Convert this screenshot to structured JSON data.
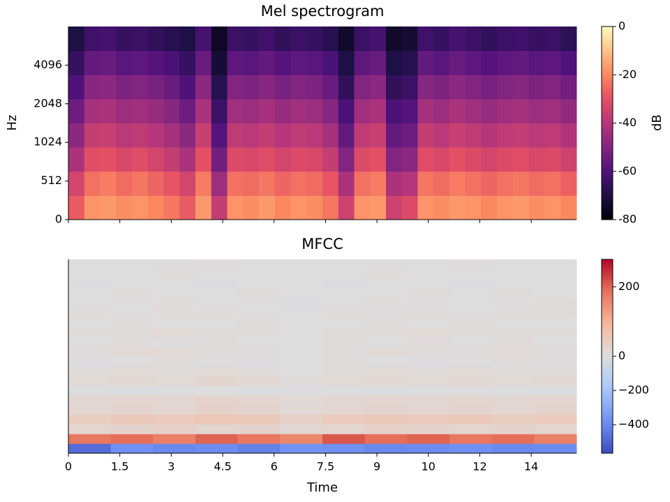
{
  "chart_data": [
    {
      "type": "heatmap",
      "title": "Mel spectrogram",
      "ylabel": "Hz",
      "ylim": [
        0,
        8192
      ],
      "yscale": "symlog",
      "linthresh": 512,
      "base": 2,
      "yticks": [
        0,
        512,
        1024,
        2048,
        4096
      ],
      "colormap": "magma",
      "clim": [
        -80,
        0
      ],
      "cticks": [
        0,
        -20,
        -40,
        -60,
        -80
      ],
      "clabel": "dB",
      "z": [
        [
          -28,
          -18,
          -17,
          -19,
          -18,
          -20,
          -23,
          -28,
          -17,
          -37,
          -18,
          -19,
          -17,
          -20,
          -18,
          -19,
          -23,
          -35,
          -18,
          -17,
          -35,
          -32,
          -18,
          -19,
          -17,
          -18,
          -20,
          -18,
          -17,
          -19,
          -18,
          -20
        ],
        [
          -34,
          -24,
          -22,
          -25,
          -23,
          -26,
          -29,
          -34,
          -22,
          -45,
          -24,
          -25,
          -23,
          -26,
          -24,
          -25,
          -29,
          -42,
          -24,
          -22,
          -42,
          -40,
          -23,
          -25,
          -22,
          -24,
          -26,
          -24,
          -23,
          -25,
          -24,
          -27
        ],
        [
          -42,
          -31,
          -30,
          -33,
          -31,
          -34,
          -37,
          -42,
          -30,
          -53,
          -32,
          -33,
          -31,
          -34,
          -32,
          -33,
          -37,
          -50,
          -32,
          -30,
          -50,
          -48,
          -31,
          -33,
          -30,
          -32,
          -34,
          -32,
          -31,
          -33,
          -32,
          -35
        ],
        [
          -48,
          -37,
          -36,
          -39,
          -38,
          -40,
          -43,
          -48,
          -36,
          -59,
          -38,
          -39,
          -37,
          -40,
          -38,
          -39,
          -43,
          -56,
          -38,
          -36,
          -56,
          -54,
          -37,
          -39,
          -36,
          -38,
          -40,
          -38,
          -37,
          -39,
          -38,
          -41
        ],
        [
          -54,
          -43,
          -42,
          -45,
          -44,
          -46,
          -49,
          -54,
          -42,
          -64,
          -44,
          -45,
          -43,
          -46,
          -44,
          -45,
          -49,
          -61,
          -44,
          -42,
          -61,
          -59,
          -43,
          -45,
          -42,
          -44,
          -46,
          -44,
          -43,
          -45,
          -44,
          -47
        ],
        [
          -60,
          -49,
          -48,
          -51,
          -50,
          -52,
          -55,
          -60,
          -48,
          -68,
          -50,
          -51,
          -49,
          -52,
          -50,
          -51,
          -55,
          -66,
          -50,
          -48,
          -66,
          -64,
          -49,
          -51,
          -48,
          -50,
          -52,
          -50,
          -49,
          -51,
          -50,
          -53
        ],
        [
          -65,
          -56,
          -55,
          -58,
          -57,
          -59,
          -61,
          -65,
          -55,
          -72,
          -57,
          -58,
          -56,
          -59,
          -57,
          -58,
          -61,
          -70,
          -57,
          -55,
          -70,
          -68,
          -56,
          -58,
          -55,
          -57,
          -59,
          -57,
          -56,
          -58,
          -57,
          -60
        ],
        [
          -70,
          -63,
          -62,
          -65,
          -64,
          -66,
          -68,
          -70,
          -62,
          -75,
          -64,
          -65,
          -63,
          -66,
          -64,
          -65,
          -68,
          -74,
          -64,
          -62,
          -74,
          -72,
          -63,
          -65,
          -62,
          -64,
          -66,
          -64,
          -63,
          -65,
          -64,
          -67
        ]
      ]
    },
    {
      "type": "heatmap",
      "title": "MFCC",
      "xlabel": "Time",
      "xlim": [
        0,
        14.82
      ],
      "xticks": [
        0,
        1.5,
        3,
        4.5,
        6,
        7.5,
        9,
        {
          "value": 10.5,
          "label": "10"
        },
        12,
        {
          "value": 13.5,
          "label": "14"
        }
      ],
      "colormap": "coolwarm",
      "cnorm": "twoslope",
      "ccenter": 0,
      "clim": [
        -566,
        279
      ],
      "cticks": [
        200,
        0,
        {
          "value": -200,
          "label": "−200"
        },
        {
          "value": -400,
          "label": "−400"
        }
      ],
      "z": [
        [
          -480,
          -380,
          -400,
          -390,
          -420,
          -370,
          -380,
          -400,
          -390,
          -380,
          -400,
          -390
        ],
        [
          180,
          190,
          170,
          200,
          180,
          160,
          210,
          190,
          200,
          180,
          190,
          170
        ],
        [
          20,
          25,
          30,
          20,
          25,
          15,
          20,
          30,
          25,
          20,
          25,
          20
        ],
        [
          40,
          50,
          45,
          55,
          50,
          30,
          45,
          50,
          45,
          50,
          40,
          45
        ],
        [
          20,
          25,
          20,
          30,
          25,
          15,
          20,
          25,
          20,
          25,
          20,
          25
        ],
        [
          15,
          20,
          15,
          25,
          20,
          10,
          15,
          20,
          15,
          20,
          15,
          20
        ],
        [
          -5,
          -10,
          -5,
          0,
          -10,
          -5,
          -5,
          -10,
          -5,
          0,
          -5,
          -10
        ],
        [
          10,
          15,
          10,
          20,
          15,
          5,
          10,
          15,
          10,
          15,
          10,
          15
        ],
        [
          5,
          10,
          5,
          10,
          5,
          0,
          5,
          10,
          5,
          10,
          5,
          5
        ],
        [
          -5,
          0,
          5,
          0,
          -5,
          0,
          5,
          0,
          -5,
          0,
          5,
          0
        ],
        [
          5,
          10,
          10,
          5,
          5,
          0,
          5,
          10,
          5,
          5,
          10,
          5
        ],
        [
          0,
          5,
          0,
          5,
          0,
          0,
          5,
          0,
          5,
          0,
          5,
          0
        ],
        [
          5,
          5,
          10,
          5,
          5,
          0,
          5,
          5,
          10,
          5,
          5,
          5
        ],
        [
          0,
          5,
          0,
          0,
          5,
          0,
          0,
          5,
          0,
          5,
          0,
          0
        ],
        [
          5,
          0,
          5,
          5,
          0,
          0,
          5,
          0,
          5,
          0,
          5,
          5
        ],
        [
          0,
          0,
          5,
          0,
          0,
          -5,
          0,
          5,
          0,
          0,
          0,
          5
        ],
        [
          0,
          5,
          0,
          0,
          5,
          0,
          0,
          0,
          5,
          0,
          5,
          0
        ],
        [
          -5,
          0,
          0,
          -5,
          0,
          0,
          -5,
          0,
          0,
          -5,
          0,
          0
        ],
        [
          0,
          0,
          5,
          0,
          0,
          0,
          0,
          5,
          0,
          0,
          0,
          0
        ],
        [
          0,
          0,
          0,
          5,
          0,
          0,
          0,
          0,
          0,
          5,
          0,
          0
        ]
      ]
    }
  ]
}
